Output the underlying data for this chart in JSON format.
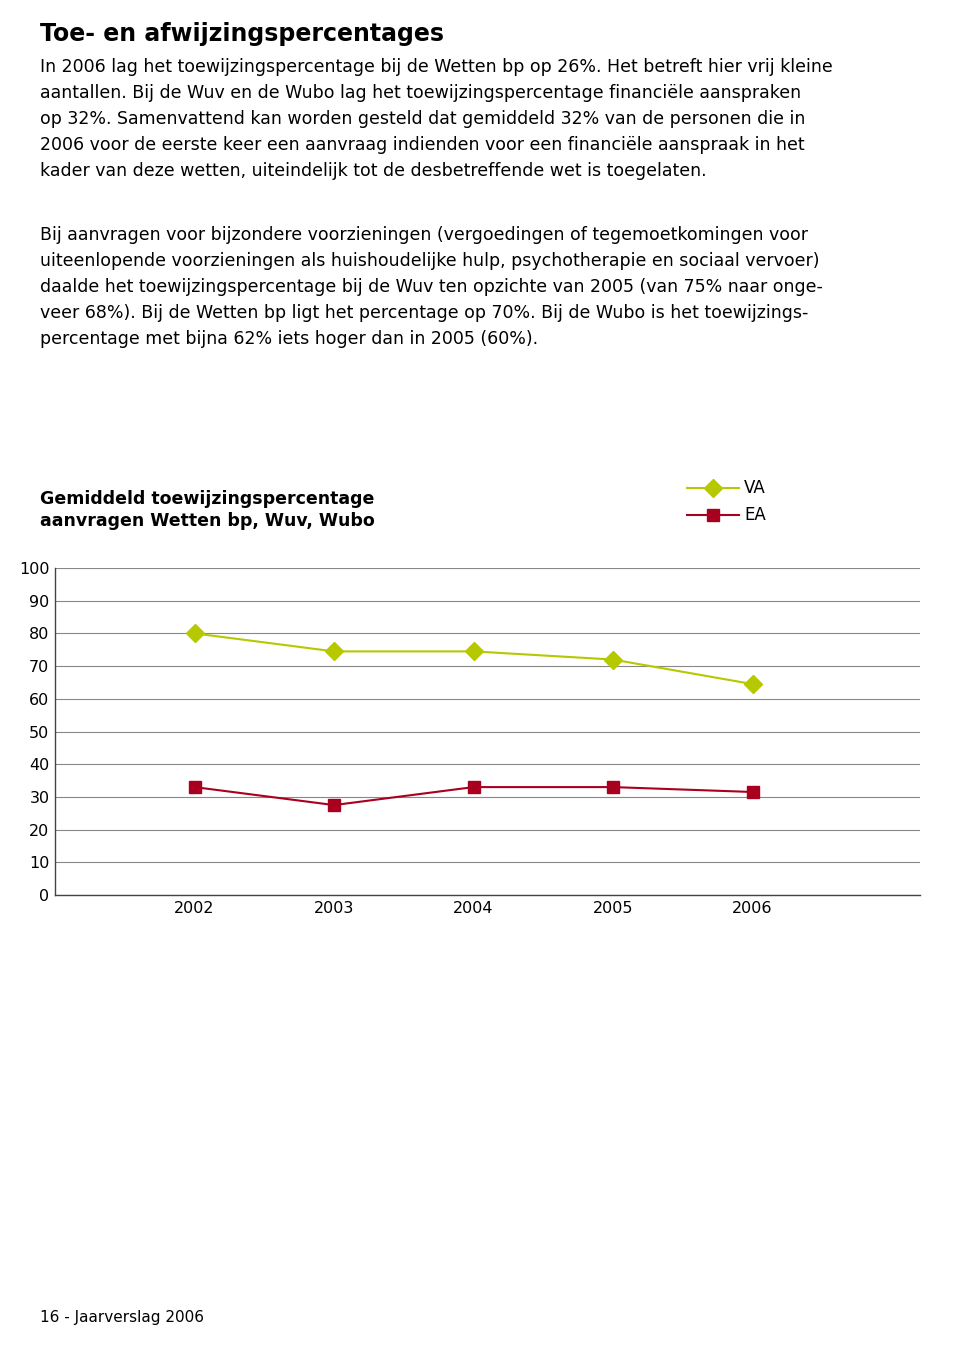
{
  "title_line1": "Gemiddeld toewijzingspercentage",
  "title_line2": "aanvragen Wetten bp, Wuv, Wubo",
  "legend_va": "VA",
  "legend_ea": "EA",
  "years": [
    2002,
    2003,
    2004,
    2005,
    2006
  ],
  "va_values": [
    80,
    74.5,
    74.5,
    72,
    64.5
  ],
  "ea_values": [
    33,
    27.5,
    33,
    33,
    31.5
  ],
  "va_color": "#b5c800",
  "ea_color": "#aa0020",
  "ylim": [
    0,
    100
  ],
  "background_color": "#ffffff",
  "grid_color": "#888888",
  "page_text": "16 - Jaarverslag 2006",
  "heading": "Toe- en afwijzingspercentages",
  "paragraph1_lines": [
    "In 2006 lag het toewijzingspercentage bij de Wetten bp op 26%. Het betreft hier vrij kleine",
    "aantallen. Bij de Wuv en de Wubo lag het toewijzingspercentage financiële aanspraken",
    "op 32%. Samenvattend kan worden gesteld dat gemiddeld 32% van de personen die in",
    "2006 voor de eerste keer een aanvraag indienden voor een financiële aanspraak in het",
    "kader van deze wetten, uiteindelijk tot de desbetreffende wet is toegelaten."
  ],
  "paragraph2_lines": [
    "Bij aanvragen voor bijzondere voorzieningen (vergoedingen of tegemoetkomingen voor",
    "uiteenlopende voorzieningen als huishoudelijke hulp, psychotherapie en sociaal vervoer)",
    "daalde het toewijzingspercentage bij de Wuv ten opzichte van 2005 (van 75% naar onge-",
    "veer 68%). Bij de Wetten bp ligt het percentage op 70%. Bij de Wubo is het toewijzings-",
    "percentage met bijna 62% iets hoger dan in 2005 (60%)."
  ]
}
